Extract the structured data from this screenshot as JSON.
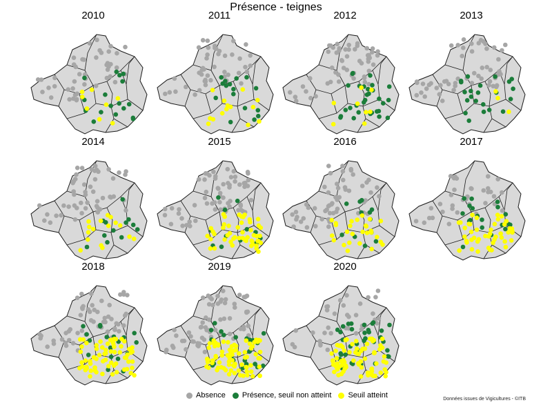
{
  "title": "Présence - teignes",
  "credit": "Données issues de Vigicultures - ©ITB",
  "colors": {
    "region_fill": "#d9d9d9",
    "border": "#1a1a1a",
    "absence": "#a6a6a6",
    "presence": "#1b7d3a",
    "seuil": "#ffff00"
  },
  "legend": [
    {
      "label": "Absence",
      "color_key": "absence"
    },
    {
      "label": "Présence, seuil non atteint",
      "color_key": "presence"
    },
    {
      "label": "Seuil atteint",
      "color_key": "seuil"
    }
  ],
  "panels": [
    {
      "year": "2010",
      "absence": 45,
      "presence": 18,
      "seuil": 8
    },
    {
      "year": "2011",
      "absence": 45,
      "presence": 16,
      "seuil": 14
    },
    {
      "year": "2012",
      "absence": 55,
      "presence": 30,
      "seuil": 8
    },
    {
      "year": "2013",
      "absence": 55,
      "presence": 22,
      "seuil": 3
    },
    {
      "year": "2014",
      "absence": 50,
      "presence": 12,
      "seuil": 16
    },
    {
      "year": "2015",
      "absence": 65,
      "presence": 12,
      "seuil": 50
    },
    {
      "year": "2016",
      "absence": 55,
      "presence": 12,
      "seuil": 28
    },
    {
      "year": "2017",
      "absence": 35,
      "presence": 20,
      "seuil": 45
    },
    {
      "year": "2018",
      "absence": 55,
      "presence": 18,
      "seuil": 70
    },
    {
      "year": "2019",
      "absence": 65,
      "presence": 25,
      "seuil": 80
    },
    {
      "year": "2020",
      "absence": 35,
      "presence": 35,
      "seuil": 75
    }
  ]
}
